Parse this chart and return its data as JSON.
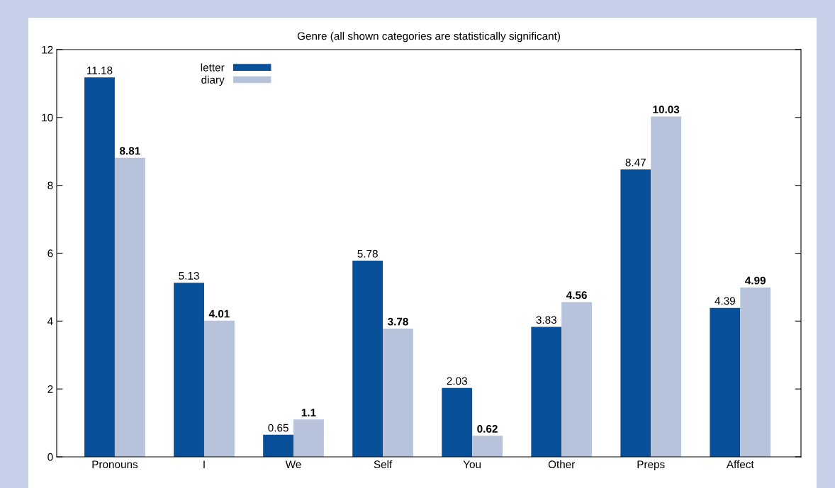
{
  "chart_data": {
    "type": "bar",
    "title": "Genre (all shown categories are statistically significant)",
    "categories": [
      "Pronouns",
      "I",
      "We",
      "Self",
      "You",
      "Other",
      "Preps",
      "Affect"
    ],
    "series": [
      {
        "name": "letter",
        "color": "#08509a",
        "values": [
          11.18,
          5.13,
          0.65,
          5.78,
          2.03,
          3.83,
          8.47,
          4.39
        ]
      },
      {
        "name": "diary",
        "color": "#b6c3db",
        "values": [
          8.81,
          4.01,
          1.1,
          3.78,
          0.62,
          4.56,
          10.03,
          4.99
        ]
      }
    ],
    "ylim": [
      0,
      12
    ],
    "yticks": [
      0,
      2,
      4,
      6,
      8,
      10,
      12
    ],
    "grid": false,
    "legend": "top left",
    "data_labels": true
  }
}
